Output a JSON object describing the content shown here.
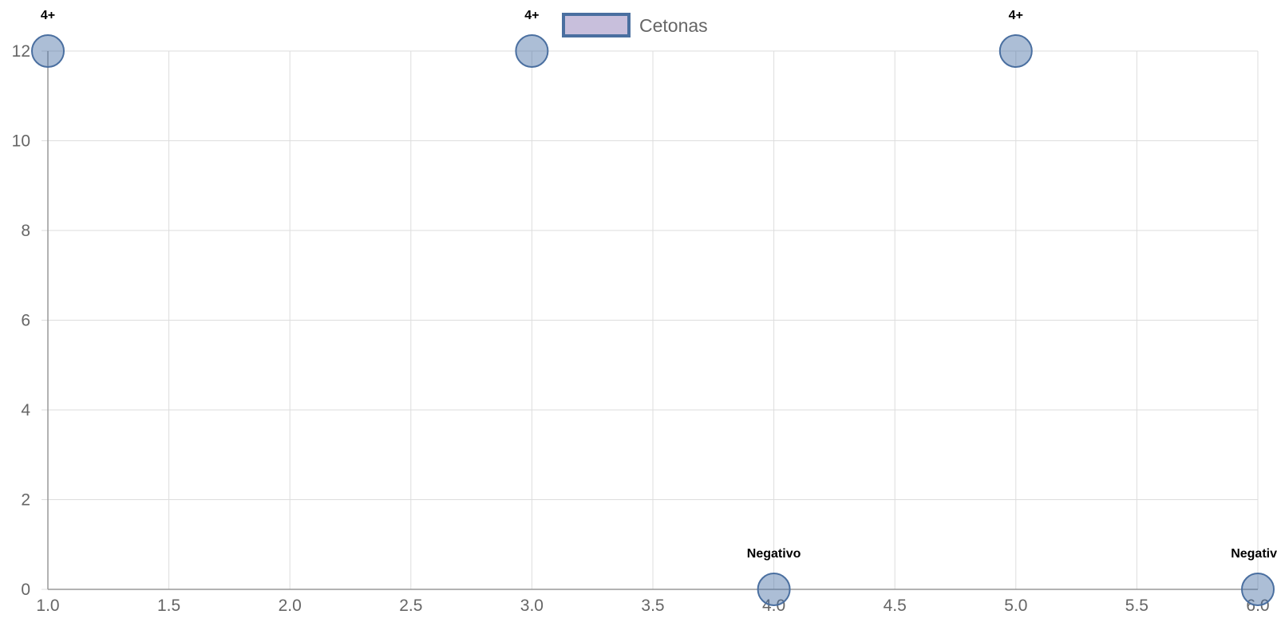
{
  "chart_data": {
    "type": "scatter",
    "title": "",
    "xlabel": "",
    "ylabel": "",
    "xlim": [
      1.0,
      6.0
    ],
    "ylim": [
      0,
      12
    ],
    "x_ticks": [
      1.0,
      1.5,
      2.0,
      2.5,
      3.0,
      3.5,
      4.0,
      4.5,
      5.0,
      5.5,
      6.0
    ],
    "y_ticks": [
      0,
      2,
      4,
      6,
      8,
      10,
      12
    ],
    "grid": true,
    "legend_position": "top-center",
    "series": [
      {
        "name": "Cetonas",
        "points": [
          {
            "x": 1,
            "y": 12,
            "label": "4+"
          },
          {
            "x": 3,
            "y": 12,
            "label": "4+"
          },
          {
            "x": 4,
            "y": 0,
            "label": "Negativo"
          },
          {
            "x": 5,
            "y": 12,
            "label": "4+"
          },
          {
            "x": 6,
            "y": 0,
            "label": "Negativo"
          }
        ]
      }
    ],
    "colors": {
      "point_fill": "rgba(70,110,165,0.45)",
      "point_stroke": "#4a6fa0",
      "legend_fill": "#c8bfdc",
      "legend_stroke": "#4a6fa0"
    }
  }
}
